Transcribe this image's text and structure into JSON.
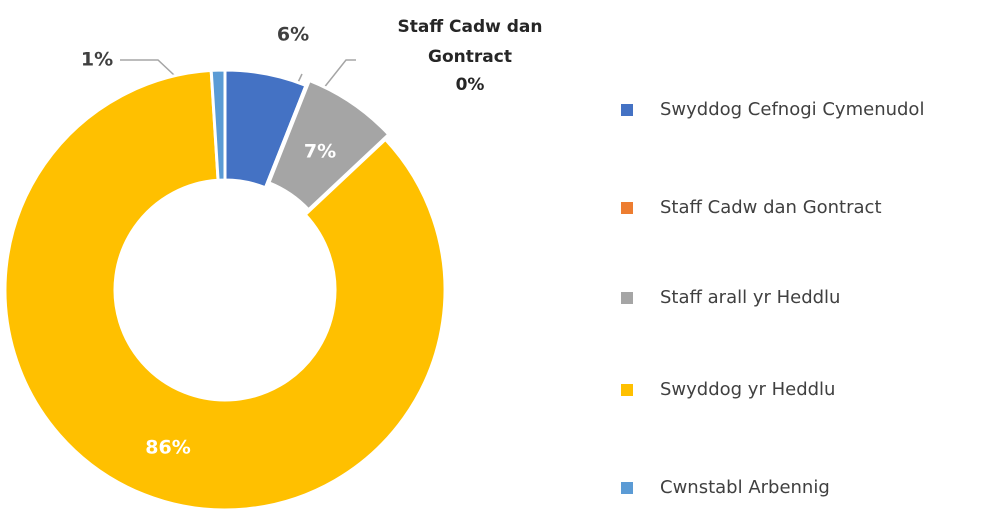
{
  "chart_data": {
    "type": "donut",
    "categories": [
      "Swyddog Cefnogi Cymenudol",
      "Staff Cadw dan Gontract",
      "Staff arall yr Heddlu",
      "Swyddog yr Heddlu",
      "Cwnstabl Arbennig"
    ],
    "values": [
      6,
      0,
      7,
      86,
      1
    ],
    "value_labels": [
      "6%",
      "0%",
      "7%",
      "86%",
      "1%"
    ],
    "colors": [
      "#4472c4",
      "#ed7d31",
      "#a5a5a5",
      "#ffc000",
      "#5b9bd5"
    ],
    "legend": "right"
  }
}
